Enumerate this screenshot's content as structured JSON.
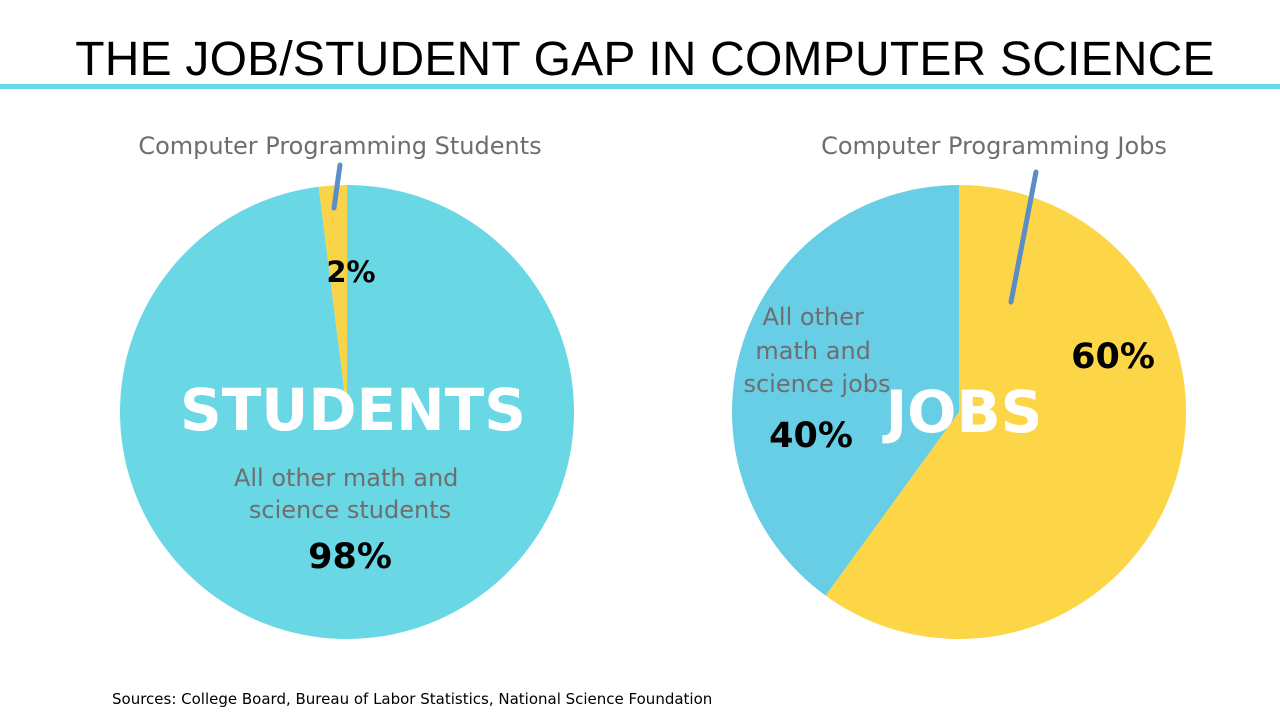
{
  "title": "THE JOB/STUDENT GAP IN COMPUTER SCIENCE",
  "sources": "Sources: College Board, Bureau of Labor Statistics, National Science Foundation",
  "colors": {
    "title_rule": "#6AD7E5",
    "label_gray": "#6E6E6E",
    "value_black": "#000000",
    "center_white": "#FFFFFF",
    "leader_line": "#5B8DC8"
  },
  "chart_data": [
    {
      "type": "pie",
      "title": "",
      "center_label": "STUDENTS",
      "callout": "Computer Programming Students",
      "slices": [
        {
          "name": "Computer Programming Students",
          "value": 2,
          "value_label": "2%",
          "color": "#F9D448"
        },
        {
          "name": "All other math and science students",
          "label_lines": [
            "All other math and",
            "science students"
          ],
          "value": 98,
          "value_label": "98%",
          "color": "#6AD7E5"
        }
      ]
    },
    {
      "type": "pie",
      "title": "",
      "center_label": "JOBS",
      "callout": "Computer Programming Jobs",
      "slices": [
        {
          "name": "Computer Programming Jobs",
          "value": 60,
          "value_label": "60%",
          "color": "#FDD647"
        },
        {
          "name": "All other math and science jobs",
          "label_lines": [
            "All other",
            "math and",
            "science jobs"
          ],
          "value": 40,
          "value_label": "40%",
          "color": "#68CEE5"
        }
      ]
    }
  ]
}
